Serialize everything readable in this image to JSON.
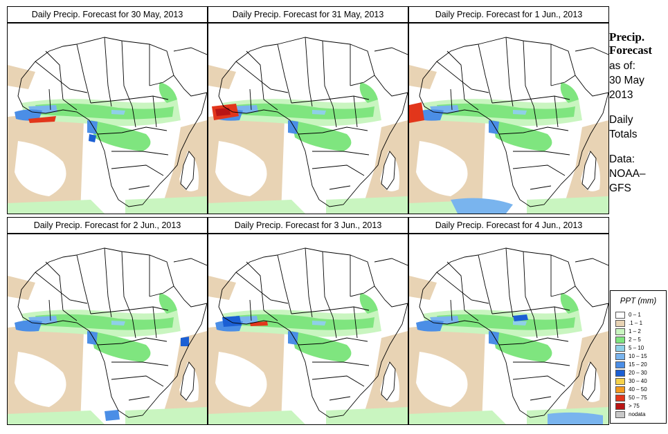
{
  "panels": [
    {
      "title": "Daily Precip. Forecast for  30 May, 2013"
    },
    {
      "title": "Daily Precip. Forecast for  31 May, 2013"
    },
    {
      "title": "Daily Precip. Forecast for  1 Jun., 2013"
    },
    {
      "title": "Daily Precip. Forecast for  2 Jun., 2013"
    },
    {
      "title": "Daily Precip. Forecast for  3 Jun., 2013"
    },
    {
      "title": "Daily Precip. Forecast for  4 Jun., 2013"
    }
  ],
  "side": {
    "heading_1": "Precip.",
    "heading_2": "Forecast",
    "as_of": "as of:",
    "date_1": "30 May",
    "date_2": "2013",
    "daily": "Daily",
    "totals": "Totals",
    "data_label": "Data:",
    "source_1": "NOAA–",
    "source_2": "GFS"
  },
  "legend": {
    "title": "PPT (mm)",
    "items": [
      {
        "label": "0 – 1",
        "color": "#ffffff"
      },
      {
        "label": ".1 – 1",
        "color": "#e8d3b4"
      },
      {
        "label": "1 – 2",
        "color": "#c9f5c0"
      },
      {
        "label": "2 – 5",
        "color": "#7fe57f"
      },
      {
        "label": "5 – 10",
        "color": "#8fd0e8"
      },
      {
        "label": "10 – 15",
        "color": "#79b4ee"
      },
      {
        "label": "15 – 20",
        "color": "#4b8ee6"
      },
      {
        "label": "20 – 30",
        "color": "#1b5fd4"
      },
      {
        "label": "30 – 40",
        "color": "#f6d24a"
      },
      {
        "label": "40 – 50",
        "color": "#f39a1e"
      },
      {
        "label": "50 – 75",
        "color": "#e2361b"
      },
      {
        "label": "> 75",
        "color": "#b81414"
      },
      {
        "label": "nodata",
        "color": "#c8c8c8"
      }
    ]
  }
}
